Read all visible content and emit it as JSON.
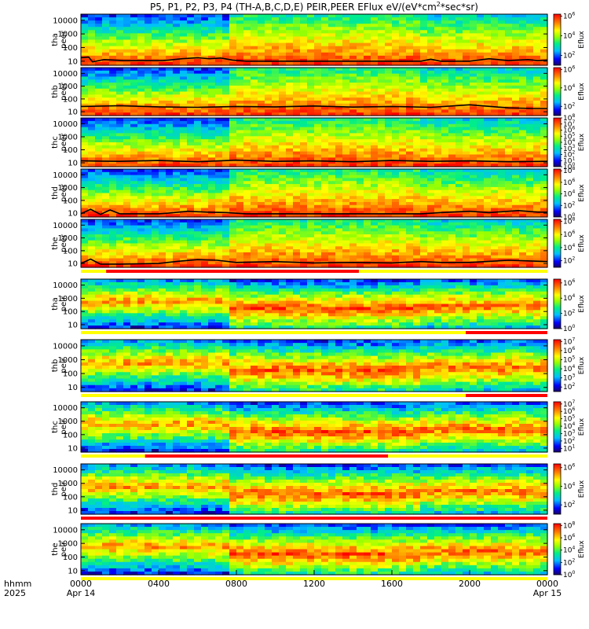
{
  "chart_data": {
    "type": "heatmap",
    "title": "P5, P1, P2, P3, P4 (TH-A,B,C,D,E) PEIR,PEER EFlux eV/(eV*cm^2*sec*sr)",
    "title_parts": {
      "prefix": "P5, P1, P2, P3, P4 (TH-A,B,C,D,E) PEIR,PEER EFlux eV/(eV*cm",
      "superscript": "2",
      "suffix": "*sec*sr)"
    },
    "colorbar_label": "Eflux",
    "x_axis": {
      "row_label": "hhmm",
      "year_label": "2025",
      "ticks": [
        "0000",
        "0400",
        "0800",
        "1200",
        "1600",
        "2000",
        "0000"
      ],
      "tick_hours": [
        0,
        4,
        8,
        12,
        16,
        20,
        24
      ],
      "date_labels": [
        {
          "text": "Apr 14",
          "hour": 0
        },
        {
          "text": "Apr 15",
          "hour": 24
        }
      ],
      "xlim_hours": [
        0,
        24
      ]
    },
    "y_scale": "log",
    "panels": [
      {
        "name": "tha peer",
        "probe": "tha",
        "kind": "peer",
        "ylabel_top": "tha",
        "ylabel_bottom": "peer",
        "yticks": [
          "10000",
          "1000",
          "100",
          "10"
        ],
        "cb_ticks": [
          {
            "base": "10",
            "exp": "6"
          },
          {
            "base": "10",
            "exp": "4"
          },
          {
            "base": "10",
            "exp": "2"
          }
        ],
        "cb_range_exp": [
          1,
          6.2
        ],
        "curve": [
          [
            0.0,
            18
          ],
          [
            0.4,
            20
          ],
          [
            0.6,
            9
          ],
          [
            1.2,
            13
          ],
          [
            2.2,
            11
          ],
          [
            3.2,
            11
          ],
          [
            4.2,
            11
          ],
          [
            4.5,
            12
          ],
          [
            5.2,
            15
          ],
          [
            6.0,
            18
          ],
          [
            6.6,
            15
          ],
          [
            7.2,
            17
          ],
          [
            7.8,
            12
          ],
          [
            8.5,
            10
          ],
          [
            12.0,
            10
          ],
          [
            14.0,
            10
          ],
          [
            17.5,
            10
          ],
          [
            18.0,
            14
          ],
          [
            18.5,
            10
          ],
          [
            20.0,
            10
          ],
          [
            21.0,
            15
          ],
          [
            22.0,
            11
          ],
          [
            23.0,
            13
          ],
          [
            23.5,
            11
          ],
          [
            24.0,
            12
          ]
        ],
        "bars": []
      },
      {
        "name": "thb peer",
        "probe": "thb",
        "kind": "peer",
        "ylabel_top": "thb",
        "ylabel_bottom": "peer",
        "yticks": [
          "10000",
          "1000",
          "100",
          "10"
        ],
        "cb_ticks": [
          {
            "base": "10",
            "exp": "6"
          },
          {
            "base": "10",
            "exp": "4"
          },
          {
            "base": "10",
            "exp": "2"
          }
        ],
        "cb_range_exp": [
          1,
          6.2
        ],
        "curve": [
          [
            0.0,
            26
          ],
          [
            2.0,
            30
          ],
          [
            4.0,
            24
          ],
          [
            6.0,
            22
          ],
          [
            8.0,
            26
          ],
          [
            10.0,
            24
          ],
          [
            12.0,
            28
          ],
          [
            14.0,
            23
          ],
          [
            16.0,
            26
          ],
          [
            18.0,
            22
          ],
          [
            20.0,
            35
          ],
          [
            22.0,
            20
          ],
          [
            23.3,
            18
          ],
          [
            24.0,
            18
          ]
        ],
        "bars": []
      },
      {
        "name": "thc peer",
        "probe": "thc",
        "kind": "peer",
        "ylabel_top": "thc",
        "ylabel_bottom": "peer",
        "yticks": [
          "10000",
          "1000",
          "100",
          "10"
        ],
        "cb_ticks": [
          {
            "base": "10",
            "exp": "8"
          },
          {
            "base": "10",
            "exp": "7"
          },
          {
            "base": "10",
            "exp": "6"
          },
          {
            "base": "10",
            "exp": "5"
          },
          {
            "base": "10",
            "exp": "4"
          },
          {
            "base": "10",
            "exp": "3"
          },
          {
            "base": "10",
            "exp": "2"
          },
          {
            "base": "10",
            "exp": "1"
          },
          {
            "base": "10",
            "exp": "0"
          }
        ],
        "cb_range_exp": [
          0,
          8
        ],
        "curve": [
          [
            0.0,
            14
          ],
          [
            2.0,
            13
          ],
          [
            4.0,
            15
          ],
          [
            6.0,
            12
          ],
          [
            8.0,
            16
          ],
          [
            10.0,
            13
          ],
          [
            12.0,
            14
          ],
          [
            14.0,
            12
          ],
          [
            16.0,
            15
          ],
          [
            18.0,
            13
          ],
          [
            20.0,
            14
          ],
          [
            22.0,
            12
          ],
          [
            24.0,
            13
          ]
        ],
        "bars": []
      },
      {
        "name": "thd peer",
        "probe": "thd",
        "kind": "peer",
        "ylabel_top": "thd",
        "ylabel_bottom": "peer",
        "yticks": [
          "10000",
          "1000",
          "100",
          "10"
        ],
        "cb_ticks": [
          {
            "base": "10",
            "exp": "8"
          },
          {
            "base": "10",
            "exp": "6"
          },
          {
            "base": "10",
            "exp": "4"
          },
          {
            "base": "10",
            "exp": "2"
          },
          {
            "base": "10",
            "exp": "0"
          }
        ],
        "cb_range_exp": [
          0,
          8.3
        ],
        "curve": [
          [
            0.0,
            9
          ],
          [
            0.5,
            20
          ],
          [
            1.0,
            8
          ],
          [
            1.5,
            18
          ],
          [
            2.0,
            9
          ],
          [
            3.0,
            9
          ],
          [
            4.0,
            9
          ],
          [
            4.5,
            10
          ],
          [
            5.5,
            14
          ],
          [
            6.5,
            12
          ],
          [
            7.5,
            11
          ],
          [
            8.5,
            9
          ],
          [
            12.0,
            9
          ],
          [
            17.5,
            9
          ],
          [
            18.5,
            11
          ],
          [
            20.0,
            14
          ],
          [
            21.0,
            11
          ],
          [
            22.5,
            16
          ],
          [
            23.5,
            12
          ],
          [
            24.0,
            12
          ]
        ],
        "bars": []
      },
      {
        "name": "the peer",
        "probe": "the",
        "kind": "peer",
        "ylabel_top": "the",
        "ylabel_bottom": "peer",
        "yticks": [
          "10000",
          "1000",
          "100",
          "10"
        ],
        "cb_ticks": [
          {
            "base": "10",
            "exp": "8"
          },
          {
            "base": "10",
            "exp": "6"
          },
          {
            "base": "10",
            "exp": "4"
          },
          {
            "base": "10",
            "exp": "2"
          }
        ],
        "cb_range_exp": [
          1,
          8.3
        ],
        "curve": [
          [
            0.0,
            10
          ],
          [
            0.5,
            22
          ],
          [
            1.0,
            9
          ],
          [
            2.0,
            9
          ],
          [
            4.0,
            10
          ],
          [
            5.0,
            15
          ],
          [
            6.0,
            20
          ],
          [
            7.0,
            18
          ],
          [
            8.0,
            12
          ],
          [
            10.0,
            14
          ],
          [
            12.0,
            11
          ],
          [
            14.0,
            12
          ],
          [
            16.0,
            11
          ],
          [
            17.5,
            14
          ],
          [
            18.5,
            12
          ],
          [
            20.0,
            12
          ],
          [
            22.0,
            18
          ],
          [
            23.0,
            16
          ],
          [
            24.0,
            14
          ]
        ],
        "bars": [
          {
            "color": "#ff0000",
            "start_hour": 1.3,
            "end_hour": 14.3
          }
        ]
      },
      {
        "name": "tha peir",
        "probe": "tha",
        "kind": "peir",
        "ylabel_top": "tha",
        "ylabel_bottom": "peir",
        "yticks": [
          "10000",
          "1000",
          "100",
          "10"
        ],
        "cb_ticks": [
          {
            "base": "10",
            "exp": "6"
          },
          {
            "base": "10",
            "exp": "4"
          },
          {
            "base": "10",
            "exp": "2"
          },
          {
            "base": "10",
            "exp": "0"
          }
        ],
        "cb_range_exp": [
          0,
          6.5
        ],
        "curve": [],
        "bars": [
          {
            "color": "#ff0000",
            "start_hour": 19.8,
            "end_hour": 24.0
          }
        ]
      },
      {
        "name": "thb peir",
        "probe": "thb",
        "kind": "peir",
        "ylabel_top": "thb",
        "ylabel_bottom": "peir",
        "yticks": [
          "10000",
          "1000",
          "100",
          "10"
        ],
        "cb_ticks": [
          {
            "base": "10",
            "exp": "7"
          },
          {
            "base": "10",
            "exp": "6"
          },
          {
            "base": "10",
            "exp": "5"
          },
          {
            "base": "10",
            "exp": "4"
          },
          {
            "base": "10",
            "exp": "3"
          },
          {
            "base": "10",
            "exp": "2"
          }
        ],
        "cb_range_exp": [
          1.5,
          7.2
        ],
        "curve": [],
        "bars": [
          {
            "color": "#ff0000",
            "start_hour": 19.8,
            "end_hour": 24.0
          }
        ]
      },
      {
        "name": "thc peir",
        "probe": "thc",
        "kind": "peir",
        "ylabel_top": "thc",
        "ylabel_bottom": "peir",
        "yticks": [
          "10000",
          "1000",
          "100",
          "10"
        ],
        "cb_ticks": [
          {
            "base": "10",
            "exp": "7"
          },
          {
            "base": "10",
            "exp": "6"
          },
          {
            "base": "10",
            "exp": "5"
          },
          {
            "base": "10",
            "exp": "4"
          },
          {
            "base": "10",
            "exp": "3"
          },
          {
            "base": "10",
            "exp": "2"
          },
          {
            "base": "10",
            "exp": "1"
          }
        ],
        "cb_range_exp": [
          0.5,
          7.3
        ],
        "curve": [],
        "bars": [
          {
            "color": "#ff0000",
            "start_hour": 3.3,
            "end_hour": 15.8
          }
        ]
      },
      {
        "name": "thd peir",
        "probe": "thd",
        "kind": "peir",
        "ylabel_top": "thd",
        "ylabel_bottom": "peir",
        "yticks": [
          "10000",
          "1000",
          "100",
          "10"
        ],
        "cb_ticks": [
          {
            "base": "10",
            "exp": "6"
          },
          {
            "base": "10",
            "exp": "4"
          },
          {
            "base": "10",
            "exp": "2"
          }
        ],
        "cb_range_exp": [
          1,
          6.4
        ],
        "curve": [],
        "bars": [
          {
            "color": "#ff0000",
            "start_hour": 0.0,
            "end_hour": 24.0
          }
        ]
      },
      {
        "name": "the peir",
        "probe": "the",
        "kind": "peir",
        "ylabel_top": "the",
        "ylabel_bottom": "peir",
        "yticks": [
          "10000",
          "1000",
          "100",
          "10"
        ],
        "cb_ticks": [
          {
            "base": "10",
            "exp": "8"
          },
          {
            "base": "10",
            "exp": "6"
          },
          {
            "base": "10",
            "exp": "4"
          },
          {
            "base": "10",
            "exp": "2"
          },
          {
            "base": "10",
            "exp": "0"
          }
        ],
        "cb_range_exp": [
          0,
          8.3
        ],
        "curve": [],
        "bars": []
      }
    ]
  }
}
